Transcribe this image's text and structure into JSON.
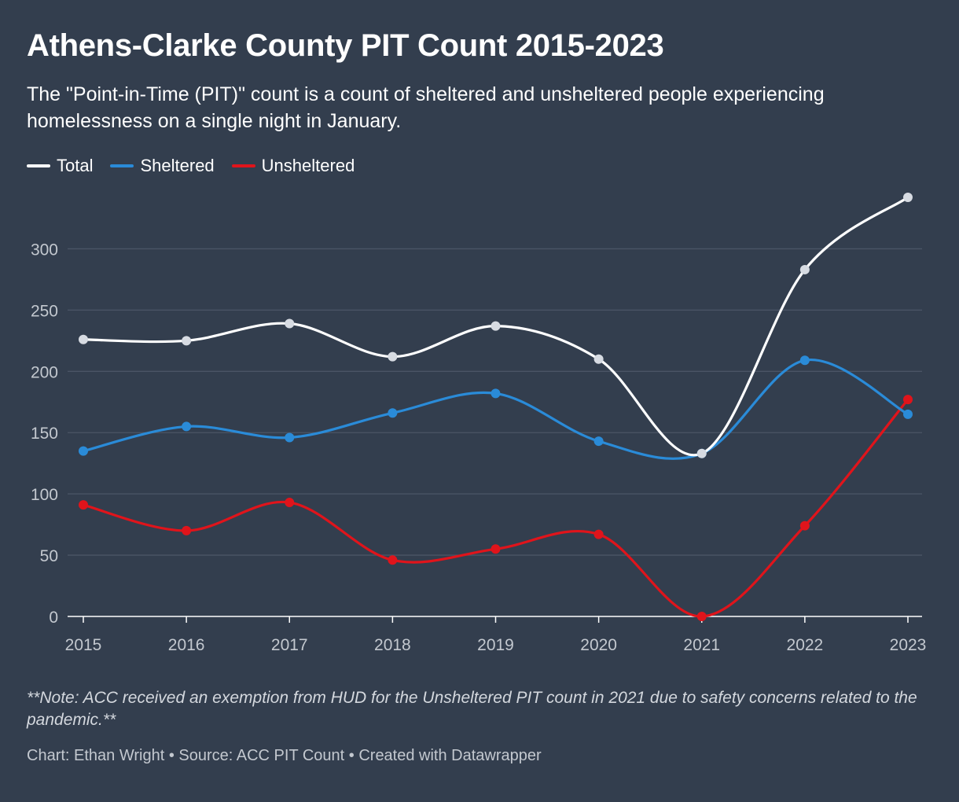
{
  "header": {
    "title": "Athens-Clarke County PIT Count 2015-2023",
    "subtitle": "The \"Point-in-Time (PIT)\" count is a count of sheltered and unsheltered people experiencing homelessness on a single night in January."
  },
  "footer": {
    "note": "**Note: ACC received an exemption from HUD for the Unsheltered PIT count in 2021 due to safety concerns related to the pandemic.**",
    "credit": "Chart: Ethan Wright • Source: ACC PIT Count • Created with Datawrapper"
  },
  "colors": {
    "background": "#333e4e",
    "grid": "#4b5566",
    "axis": "#ffffff",
    "tick_text": "#c3c8cf"
  },
  "chart_data": {
    "type": "line",
    "title": "Athens-Clarke County PIT Count 2015-2023",
    "xlabel": "",
    "ylabel": "",
    "x": [
      "2015",
      "2016",
      "2017",
      "2018",
      "2019",
      "2020",
      "2021",
      "2022",
      "2023"
    ],
    "ylim": [
      0,
      340
    ],
    "yticks": [
      0,
      50,
      100,
      150,
      200,
      250,
      300
    ],
    "grid": true,
    "legend_position": "top-left",
    "series": [
      {
        "name": "Total",
        "color": "#ffffff",
        "marker_color": "#d7dbe2",
        "values": [
          226,
          225,
          239,
          212,
          237,
          210,
          133,
          283,
          342
        ]
      },
      {
        "name": "Sheltered",
        "color": "#2a8bd8",
        "marker_color": "#2a8bd8",
        "values": [
          135,
          155,
          146,
          166,
          182,
          143,
          133,
          209,
          165
        ]
      },
      {
        "name": "Unsheltered",
        "color": "#e0141b",
        "marker_color": "#e0141b",
        "values": [
          91,
          70,
          93,
          46,
          55,
          67,
          0,
          74,
          177
        ]
      }
    ]
  }
}
